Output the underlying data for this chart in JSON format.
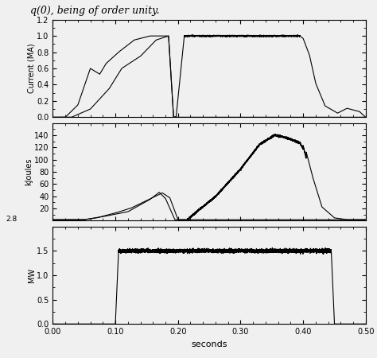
{
  "title_text": "q(0), being of order unity.",
  "xlabel": "seconds",
  "xlim": [
    0.0,
    0.5
  ],
  "subplot1": {
    "ylabel": "Current (MA)",
    "ylim": [
      0.0,
      1.2
    ],
    "yticks": [
      0.0,
      0.2,
      0.4,
      0.6,
      0.8,
      1.0,
      1.2
    ]
  },
  "subplot2": {
    "ylabel": "kJoules",
    "ylim": [
      0,
      160
    ],
    "yticks": [
      20,
      40,
      60,
      80,
      100,
      120,
      140
    ],
    "yline_label": "2.8"
  },
  "subplot3": {
    "ylabel": "MW",
    "ylim": [
      0.0,
      2.0
    ],
    "yticks": [
      0.0,
      0.5,
      1.0,
      1.5
    ]
  },
  "bg_color": "#f0f0f0",
  "line_color": "#000000",
  "xticks": [
    0.0,
    0.1,
    0.2,
    0.3,
    0.4,
    0.5
  ],
  "xtick_labels": [
    "0.00",
    "0.10",
    "0.20",
    "0.30",
    "0.40",
    "0.50"
  ]
}
